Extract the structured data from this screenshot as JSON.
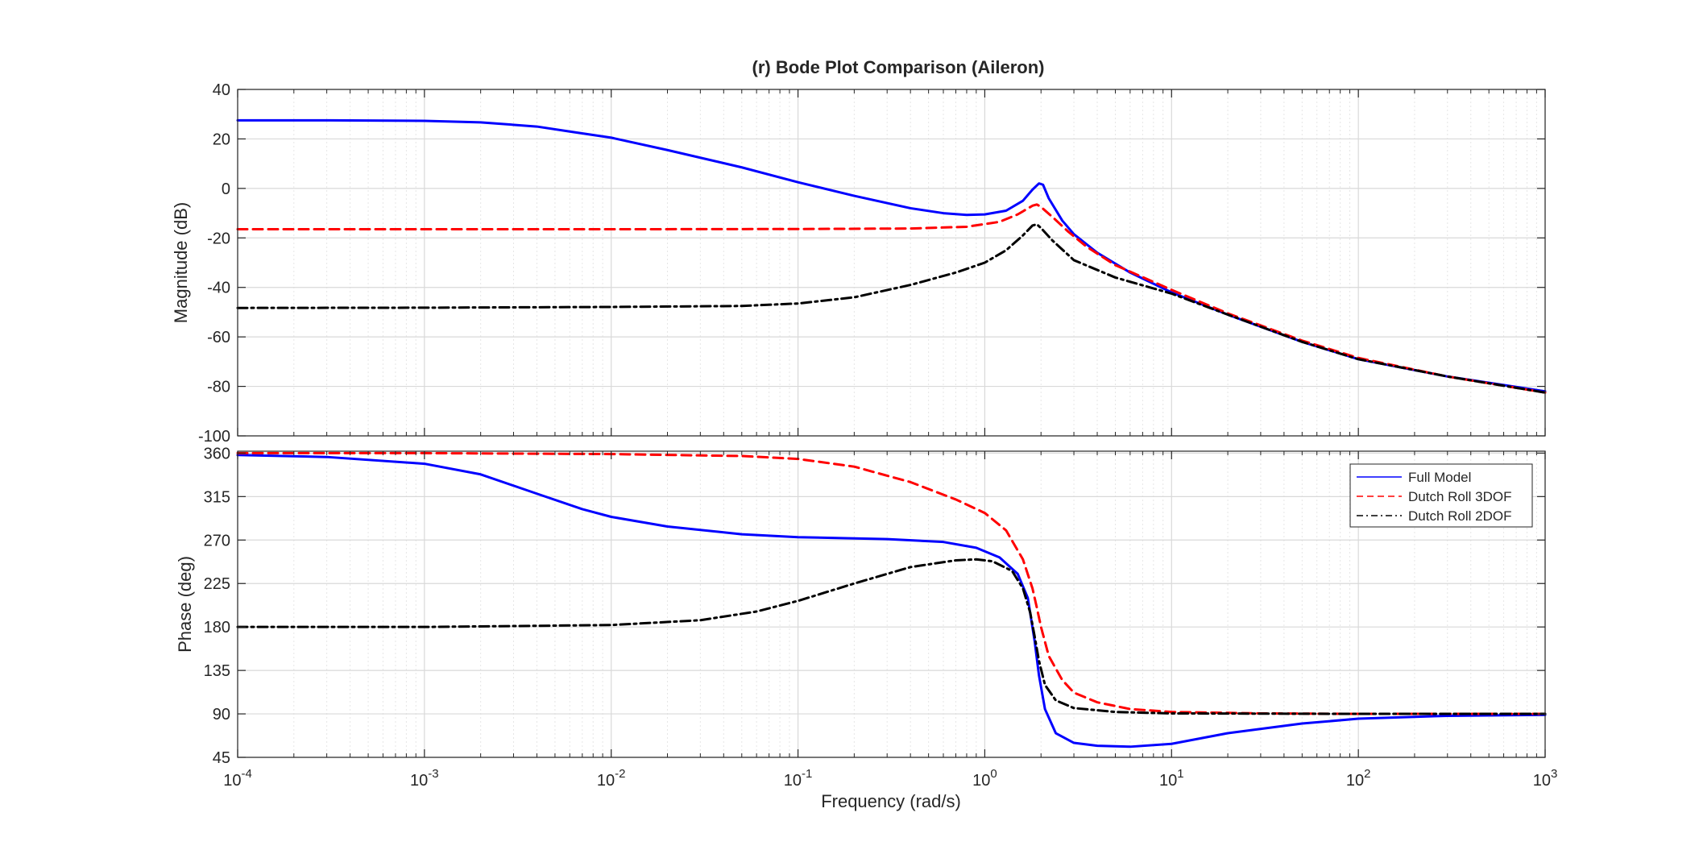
{
  "chart_data": {
    "type": "line",
    "title": "(r) Bode Plot Comparison (Aileron)",
    "xlabel": "Frequency  (rad/s)",
    "x_scale": "log",
    "x_ticks": [
      {
        "value": 0.0001,
        "base": "10",
        "exp": "-4"
      },
      {
        "value": 0.001,
        "base": "10",
        "exp": "-3"
      },
      {
        "value": 0.01,
        "base": "10",
        "exp": "-2"
      },
      {
        "value": 0.1,
        "base": "10",
        "exp": "-1"
      },
      {
        "value": 1,
        "base": "10",
        "exp": "0"
      },
      {
        "value": 10,
        "base": "10",
        "exp": "1"
      },
      {
        "value": 100,
        "base": "10",
        "exp": "2"
      },
      {
        "value": 1000,
        "base": "10",
        "exp": "3"
      }
    ],
    "xlim": [
      0.0001,
      1000
    ],
    "grid": true,
    "legend_placement": "top-right of phase panel",
    "series_styles": [
      {
        "name": "Full Model",
        "color": "#0000ff",
        "dash": "solid"
      },
      {
        "name": "Dutch Roll 3DOF",
        "color": "#ff0000",
        "dash": "dashed"
      },
      {
        "name": "Dutch Roll 2DOF",
        "color": "#000000",
        "dash": "dashdot"
      }
    ],
    "magnitude": {
      "ylabel": "Magnitude (dB)",
      "ylim": [
        -100,
        40
      ],
      "yticks": [
        40,
        20,
        0,
        -20,
        -40,
        -60,
        -80,
        -100
      ],
      "series": [
        {
          "name": "Full Model",
          "points": [
            [
              0.0001,
              27.5
            ],
            [
              0.000316,
              27.5
            ],
            [
              0.001,
              27.3
            ],
            [
              0.002,
              26.7
            ],
            [
              0.004,
              25.0
            ],
            [
              0.006,
              23.0
            ],
            [
              0.01,
              20.5
            ],
            [
              0.02,
              15.5
            ],
            [
              0.05,
              8.5
            ],
            [
              0.1,
              2.5
            ],
            [
              0.2,
              -3.0
            ],
            [
              0.4,
              -8.0
            ],
            [
              0.6,
              -10.0
            ],
            [
              0.8,
              -10.7
            ],
            [
              1.0,
              -10.5
            ],
            [
              1.3,
              -9.0
            ],
            [
              1.6,
              -5.0
            ],
            [
              1.8,
              -0.5
            ],
            [
              1.95,
              2.0
            ],
            [
              2.05,
              1.5
            ],
            [
              2.2,
              -4.0
            ],
            [
              2.6,
              -13.0
            ],
            [
              3.0,
              -18.5
            ],
            [
              4.0,
              -26.0
            ],
            [
              6.0,
              -34.0
            ],
            [
              10.0,
              -42.0
            ],
            [
              20.0,
              -51.0
            ],
            [
              50.0,
              -62.0
            ],
            [
              100.0,
              -69.0
            ],
            [
              300.0,
              -76.0
            ],
            [
              1000.0,
              -82.0
            ]
          ]
        },
        {
          "name": "Dutch Roll 3DOF",
          "points": [
            [
              0.0001,
              -16.5
            ],
            [
              0.001,
              -16.5
            ],
            [
              0.01,
              -16.5
            ],
            [
              0.1,
              -16.4
            ],
            [
              0.4,
              -16.2
            ],
            [
              0.8,
              -15.5
            ],
            [
              1.2,
              -13.5
            ],
            [
              1.5,
              -10.5
            ],
            [
              1.8,
              -7.0
            ],
            [
              1.9,
              -6.5
            ],
            [
              2.0,
              -7.5
            ],
            [
              2.3,
              -11.5
            ],
            [
              2.8,
              -17.5
            ],
            [
              3.5,
              -23.5
            ],
            [
              5.0,
              -31.0
            ],
            [
              10.0,
              -41.0
            ],
            [
              20.0,
              -50.5
            ],
            [
              50.0,
              -61.5
            ],
            [
              100.0,
              -68.5
            ],
            [
              300.0,
              -76.0
            ],
            [
              1000.0,
              -82.5
            ]
          ]
        },
        {
          "name": "Dutch Roll 2DOF",
          "points": [
            [
              0.0001,
              -48.3
            ],
            [
              0.001,
              -48.2
            ],
            [
              0.01,
              -47.9
            ],
            [
              0.05,
              -47.5
            ],
            [
              0.1,
              -46.5
            ],
            [
              0.2,
              -44.0
            ],
            [
              0.4,
              -39.0
            ],
            [
              0.7,
              -34.0
            ],
            [
              1.0,
              -30.0
            ],
            [
              1.3,
              -25.0
            ],
            [
              1.6,
              -19.0
            ],
            [
              1.8,
              -15.0
            ],
            [
              1.9,
              -14.5
            ],
            [
              2.0,
              -16.0
            ],
            [
              2.3,
              -21.0
            ],
            [
              3.0,
              -29.0
            ],
            [
              5.0,
              -36.0
            ],
            [
              10.0,
              -42.5
            ],
            [
              20.0,
              -51.0
            ],
            [
              50.0,
              -62.0
            ],
            [
              100.0,
              -69.0
            ],
            [
              300.0,
              -76.0
            ],
            [
              1000.0,
              -82.5
            ]
          ]
        }
      ]
    },
    "phase": {
      "ylabel": "Phase (deg)",
      "ylim": [
        45,
        362
      ],
      "yticks": [
        360,
        315,
        270,
        225,
        180,
        135,
        90,
        45
      ],
      "series": [
        {
          "name": "Full Model",
          "points": [
            [
              0.0001,
              358
            ],
            [
              0.0003,
              356
            ],
            [
              0.001,
              349
            ],
            [
              0.002,
              338
            ],
            [
              0.004,
              318
            ],
            [
              0.007,
              302
            ],
            [
              0.01,
              294
            ],
            [
              0.02,
              284
            ],
            [
              0.05,
              276
            ],
            [
              0.1,
              273
            ],
            [
              0.3,
              271
            ],
            [
              0.6,
              268
            ],
            [
              0.9,
              262
            ],
            [
              1.2,
              252
            ],
            [
              1.5,
              235
            ],
            [
              1.7,
              210
            ],
            [
              1.85,
              165
            ],
            [
              1.95,
              130
            ],
            [
              2.1,
              95
            ],
            [
              2.4,
              70
            ],
            [
              3.0,
              60
            ],
            [
              4.0,
              57
            ],
            [
              6.0,
              56
            ],
            [
              10.0,
              59
            ],
            [
              20.0,
              70
            ],
            [
              50.0,
              80
            ],
            [
              100.0,
              85
            ],
            [
              300.0,
              88
            ],
            [
              1000.0,
              89
            ]
          ]
        },
        {
          "name": "Dutch Roll 3DOF",
          "points": [
            [
              0.0001,
              360
            ],
            [
              0.001,
              360
            ],
            [
              0.01,
              359
            ],
            [
              0.05,
              357
            ],
            [
              0.1,
              354
            ],
            [
              0.2,
              346
            ],
            [
              0.4,
              330
            ],
            [
              0.7,
              312
            ],
            [
              1.0,
              298
            ],
            [
              1.3,
              280
            ],
            [
              1.6,
              250
            ],
            [
              1.8,
              220
            ],
            [
              1.9,
              200
            ],
            [
              2.0,
              180
            ],
            [
              2.2,
              150
            ],
            [
              2.6,
              125
            ],
            [
              3.0,
              112
            ],
            [
              4.0,
              102
            ],
            [
              6.0,
              95
            ],
            [
              10.0,
              92
            ],
            [
              30.0,
              90.5
            ],
            [
              100.0,
              90
            ],
            [
              1000.0,
              90
            ]
          ]
        },
        {
          "name": "Dutch Roll 2DOF",
          "points": [
            [
              0.0001,
              180
            ],
            [
              0.001,
              180
            ],
            [
              0.01,
              182
            ],
            [
              0.03,
              187
            ],
            [
              0.06,
              196
            ],
            [
              0.1,
              207
            ],
            [
              0.2,
              225
            ],
            [
              0.4,
              242
            ],
            [
              0.7,
              249
            ],
            [
              0.9,
              250
            ],
            [
              1.1,
              248
            ],
            [
              1.4,
              238
            ],
            [
              1.6,
              220
            ],
            [
              1.75,
              195
            ],
            [
              1.85,
              170
            ],
            [
              1.95,
              145
            ],
            [
              2.1,
              120
            ],
            [
              2.4,
              104
            ],
            [
              3.0,
              96
            ],
            [
              5.0,
              92
            ],
            [
              10.0,
              90.5
            ],
            [
              100.0,
              90
            ],
            [
              1000.0,
              90
            ]
          ]
        }
      ]
    }
  }
}
